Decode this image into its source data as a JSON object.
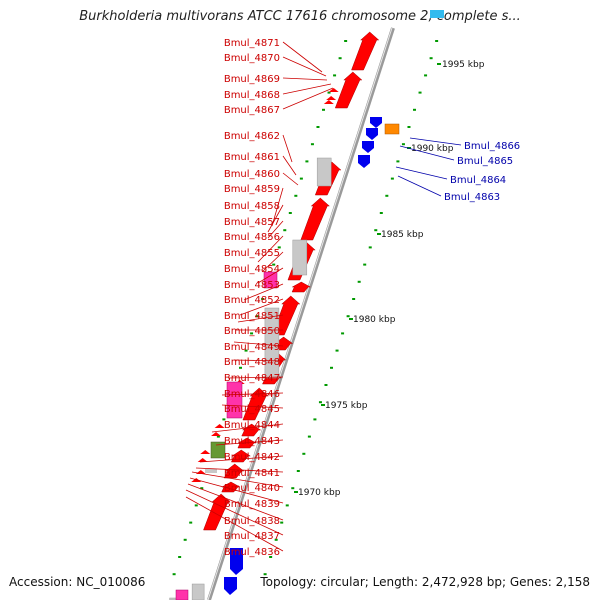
{
  "title": "Burkholderia multivorans ATCC 17616 chromosome 2, complete s...",
  "footer": {
    "accession": "Accession: NC_010086",
    "summary": "Topology: circular; Length: 2,472,928 bp; Genes: 2,158"
  },
  "scale_labels": [
    "1995 kbp",
    "1990 kbp",
    "1985 kbp",
    "1980 kbp",
    "1975 kbp",
    "1970 kbp"
  ],
  "colors": {
    "forward_gene": "#ff0000",
    "reverse_gene": "#0000ee",
    "pseudogene": "#c8c8c8",
    "rna_gene": "#ff33aa",
    "other_gene": "#ff8800",
    "unknown_gene": "#669933",
    "backbone": "#888888",
    "tick": "#009900",
    "label_forward": "#cc0000",
    "label_reverse": "#0000aa"
  },
  "left_labels": [
    "Bmul_4871",
    "Bmul_4870",
    "Bmul_4869",
    "Bmul_4868",
    "Bmul_4867",
    "Bmul_4862",
    "Bmul_4861",
    "Bmul_4860",
    "Bmul_4859",
    "Bmul_4858",
    "Bmul_4857",
    "Bmul_4856",
    "Bmul_4855",
    "Bmul_4854",
    "Bmul_4853",
    "Bmul_4852",
    "Bmul_4851",
    "Bmul_4850",
    "Bmul_4849",
    "Bmul_4848",
    "Bmul_4847",
    "Bmul_4846",
    "Bmul_4845",
    "Bmul_4844",
    "Bmul_4843",
    "Bmul_4842",
    "Bmul_4841",
    "Bmul_4840",
    "Bmul_4839",
    "Bmul_4838",
    "Bmul_4837",
    "Bmul_4836"
  ],
  "right_labels": [
    "Bmul_4866",
    "Bmul_4865",
    "Bmul_4864",
    "Bmul_4863"
  ]
}
